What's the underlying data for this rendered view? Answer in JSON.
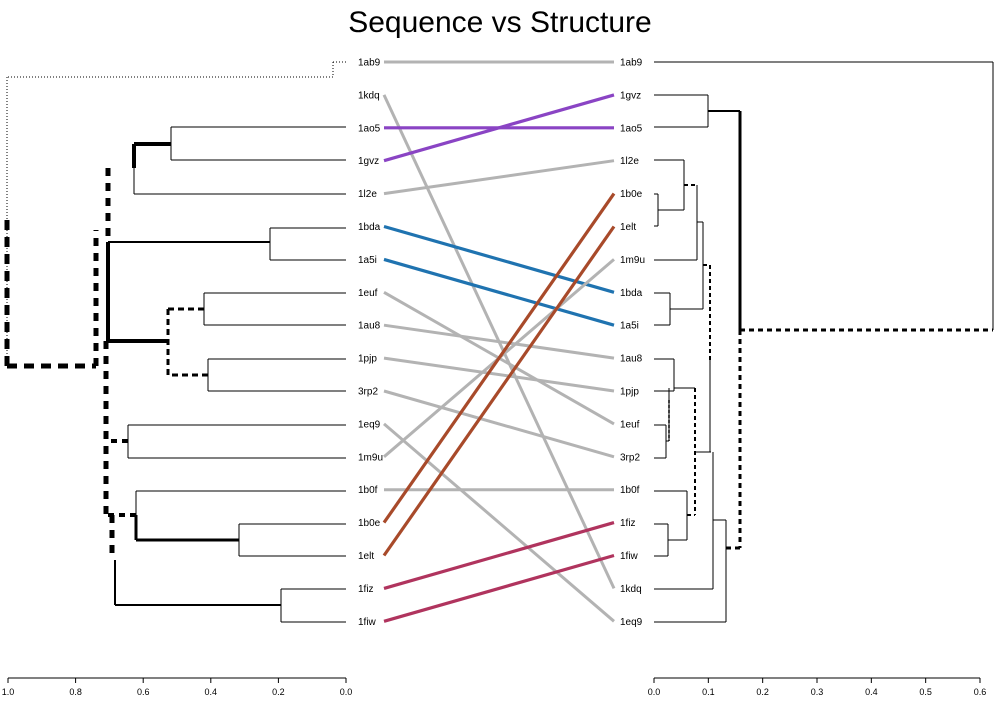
{
  "title": "Sequence vs Structure",
  "left_labels": [
    "1ab9",
    "1kdq",
    "1ao5",
    "1gvz",
    "1l2e",
    "1bda",
    "1a5i",
    "1euf",
    "1au8",
    "1pjp",
    "3rp2",
    "1eq9",
    "1m9u",
    "1b0f",
    "1b0e",
    "1elt",
    "1fiz",
    "1fiw"
  ],
  "right_labels": [
    "1ab9",
    "1gvz",
    "1ao5",
    "1l2e",
    "1b0e",
    "1elt",
    "1m9u",
    "1bda",
    "1a5i",
    "1au8",
    "1pjp",
    "1euf",
    "3rp2",
    "1b0f",
    "1fiz",
    "1fiw",
    "1kdq",
    "1eq9"
  ],
  "colors": {
    "gray": "#b3b3b3",
    "purple": "#8a44c4",
    "brown": "#a84a2a",
    "blue": "#1f73b0",
    "crimson": "#b0345e"
  },
  "connections": [
    {
      "from": "1ab9",
      "to": "1ab9",
      "color": "gray"
    },
    {
      "from": "1kdq",
      "to": "1kdq",
      "color": "gray"
    },
    {
      "from": "1ao5",
      "to": "1ao5",
      "color": "purple"
    },
    {
      "from": "1gvz",
      "to": "1gvz",
      "color": "purple"
    },
    {
      "from": "1l2e",
      "to": "1l2e",
      "color": "gray"
    },
    {
      "from": "1bda",
      "to": "1bda",
      "color": "blue"
    },
    {
      "from": "1a5i",
      "to": "1a5i",
      "color": "blue"
    },
    {
      "from": "1euf",
      "to": "1euf",
      "color": "gray"
    },
    {
      "from": "1au8",
      "to": "1au8",
      "color": "gray"
    },
    {
      "from": "1pjp",
      "to": "1pjp",
      "color": "gray"
    },
    {
      "from": "3rp2",
      "to": "3rp2",
      "color": "gray"
    },
    {
      "from": "1eq9",
      "to": "1eq9",
      "color": "gray"
    },
    {
      "from": "1m9u",
      "to": "1m9u",
      "color": "gray"
    },
    {
      "from": "1b0f",
      "to": "1b0f",
      "color": "gray"
    },
    {
      "from": "1b0e",
      "to": "1b0e",
      "color": "brown"
    },
    {
      "from": "1elt",
      "to": "1elt",
      "color": "brown"
    },
    {
      "from": "1fiz",
      "to": "1fiz",
      "color": "crimson"
    },
    {
      "from": "1fiw",
      "to": "1fiw",
      "color": "crimson"
    }
  ],
  "left_axis": {
    "ticks": [
      "1.0",
      "0.8",
      "0.6",
      "0.4",
      "0.2",
      "0.0"
    ],
    "range": [
      1.0,
      0.0
    ]
  },
  "right_axis": {
    "ticks": [
      "0.0",
      "0.1",
      "0.2",
      "0.3",
      "0.4",
      "0.5",
      "0.6"
    ],
    "range": [
      0.0,
      0.6
    ]
  }
}
